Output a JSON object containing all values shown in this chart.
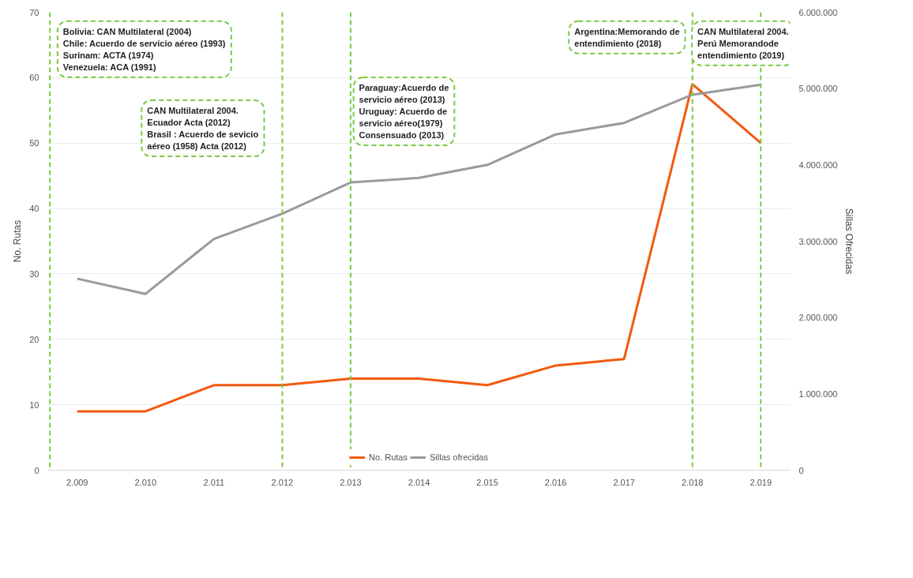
{
  "chart_data": {
    "type": "line",
    "x": [
      2009,
      2010,
      2011,
      2012,
      2013,
      2014,
      2015,
      2016,
      2017,
      2018,
      2019
    ],
    "xlim": [
      2008.57,
      2019.43
    ],
    "xticks": [
      {
        "value": 2009,
        "label": "2.009"
      },
      {
        "value": 2010,
        "label": "2.010"
      },
      {
        "value": 2011,
        "label": "2.011"
      },
      {
        "value": 2012,
        "label": "2.012"
      },
      {
        "value": 2013,
        "label": "2.013"
      },
      {
        "value": 2014,
        "label": "2.014"
      },
      {
        "value": 2015,
        "label": "2.015"
      },
      {
        "value": 2016,
        "label": "2.016"
      },
      {
        "value": 2017,
        "label": "2.017"
      },
      {
        "value": 2018,
        "label": "2.018"
      },
      {
        "value": 2019,
        "label": "2.019"
      }
    ],
    "ylabel": "No. Rutas",
    "y2label": "Sillas Ofrecidas",
    "ylim": [
      0,
      70
    ],
    "yticks": [
      0,
      10,
      20,
      30,
      40,
      50,
      60,
      70
    ],
    "y2lim": [
      0,
      6000000
    ],
    "y2ticks": [
      {
        "value": 0,
        "label": "0"
      },
      {
        "value": 1000000,
        "label": "1.000.000"
      },
      {
        "value": 2000000,
        "label": "2.000.000"
      },
      {
        "value": 3000000,
        "label": "3.000.000"
      },
      {
        "value": 4000000,
        "label": "4.000.000"
      },
      {
        "value": 5000000,
        "label": "5.000.000"
      },
      {
        "value": 6000000,
        "label": "6.000.000"
      }
    ],
    "series": [
      {
        "name": "No. Rutas",
        "color": "#f4590f",
        "values": [
          9,
          9,
          13,
          13,
          14,
          14,
          13,
          16,
          17,
          59,
          50
        ]
      },
      {
        "name": "Sillas ofrecidas",
        "color": "#9a9a9a",
        "axis": "y2",
        "values": [
          2510000,
          2310000,
          3030000,
          3360000,
          3770000,
          3830000,
          4000000,
          4400000,
          4550000,
          4920000,
          5050000
        ]
      }
    ],
    "ref_lines": [
      {
        "axis": "x",
        "value": 2008.6,
        "label": "Bolivia: CAN Multilateral (2004)\nChile: Acuerdo de servicio aéreo (1993)\nSurinam: ACTA (1974)\nVenezuela: ACA (1991)",
        "color": "#7ac943",
        "line_style": "dashed"
      },
      {
        "axis": "x",
        "value": 2012,
        "label": "CAN Multilateral 2004.\nEcuador Acta (2012)\nBrasil : Acuerdo de sevicio\naéreo (1958) Acta (2012)",
        "color": "#7ac943",
        "line_style": "dashed"
      },
      {
        "axis": "x",
        "value": 2013,
        "label": "Paraguay:Acuerdo de\nservicio aéreo  (2013)\nUruguay: Acuerdo de\nservicio aéreo(1979)\nConsensuado (2013)",
        "color": "#7ac943",
        "line_style": "dashed"
      },
      {
        "axis": "x",
        "value": 2018,
        "label": "Argentina:Memorando de\nentendimiento (2018)",
        "color": "#7ac943",
        "line_style": "dashed"
      },
      {
        "axis": "x",
        "value": 2019,
        "label": "CAN Multilateral 2004.\nPerú Memorandode\nentendimiento (2019)",
        "color": "#7ac943",
        "line_style": "dashed"
      }
    ],
    "grid": "y",
    "legend": "bottom"
  }
}
